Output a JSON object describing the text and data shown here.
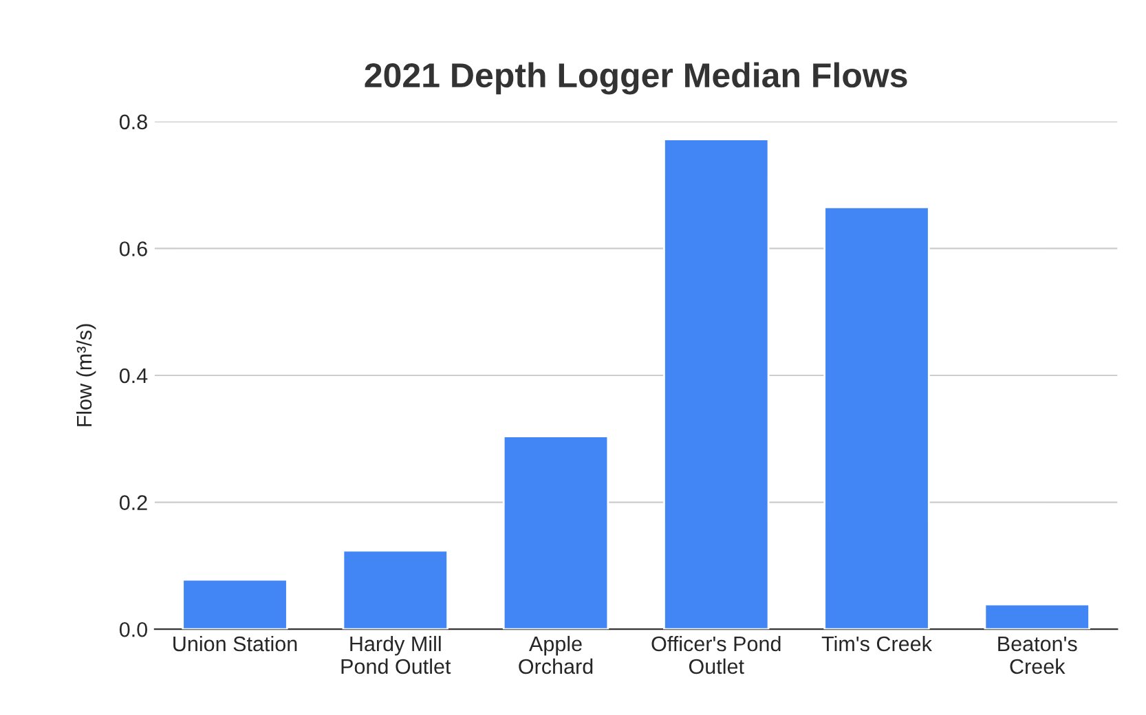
{
  "chart_data": {
    "type": "bar",
    "title": "2021 Depth Logger Median Flows",
    "ylabel": "Flow (m³/s)",
    "categories": [
      "Union Station",
      "Hardy Mill\nPond Outlet",
      "Apple\nOrchard",
      "Officer's Pond\nOutlet",
      "Tim's Creek",
      "Beaton's\nCreek"
    ],
    "values": [
      0.078,
      0.124,
      0.304,
      0.772,
      0.665,
      0.039
    ],
    "color": "#4285f4",
    "ylim": [
      0,
      0.8
    ],
    "yticks": [
      {
        "value": 0,
        "label": "0.0"
      },
      {
        "value": 0.2,
        "label": "0.2"
      },
      {
        "value": 0.4,
        "label": "0.4"
      },
      {
        "value": 0.6,
        "label": "0.6"
      },
      {
        "value": 0.8,
        "label": "0.8"
      }
    ],
    "grid": "y"
  }
}
